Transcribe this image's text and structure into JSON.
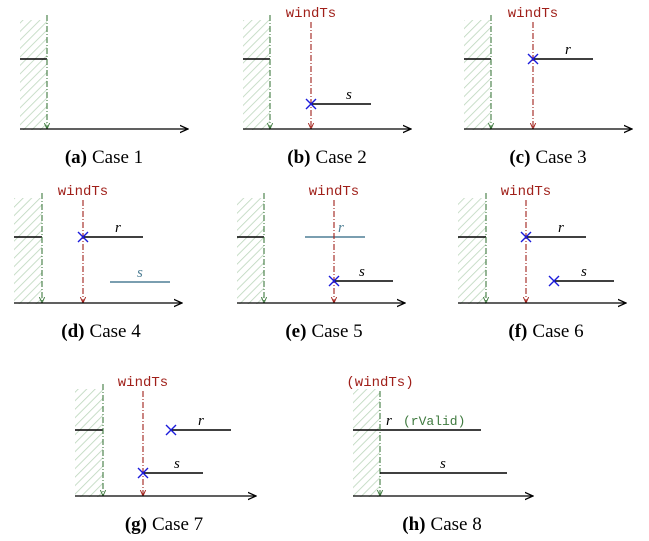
{
  "watermark_label": "windTs",
  "watermark_label_paren": "(windTs)",
  "valid_note": "(rValid)",
  "cases": [
    {
      "letter": "(a)",
      "name": "Case 1"
    },
    {
      "letter": "(b)",
      "name": "Case 2",
      "s_label": "s"
    },
    {
      "letter": "(c)",
      "name": "Case 3",
      "r_label": "r"
    },
    {
      "letter": "(d)",
      "name": "Case 4",
      "r_label": "r",
      "s_label": "s"
    },
    {
      "letter": "(e)",
      "name": "Case 5",
      "r_label": "r",
      "s_label": "s"
    },
    {
      "letter": "(f)",
      "name": "Case 6",
      "r_label": "r",
      "s_label": "s"
    },
    {
      "letter": "(g)",
      "name": "Case 7",
      "r_label": "r",
      "s_label": "s"
    },
    {
      "letter": "(h)",
      "name": "Case 8",
      "r_label": "r",
      "s_label": "s"
    }
  ],
  "colors": {
    "axis": "#000000",
    "progress_line": "#3f7a3f",
    "watermark_line": "#a0201a",
    "marker": "#1a1adb",
    "faded_stream": "#4f7f95",
    "hatch": "#bcd6bc"
  }
}
